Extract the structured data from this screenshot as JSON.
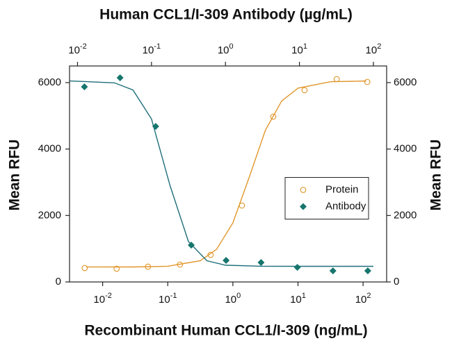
{
  "chart_data": {
    "type": "scatter",
    "title": "Human CCL1/I-309 Antibody (µg/mL)",
    "x_label": "Recombinant Human CCL1/I-309 (ng/mL)",
    "y_label": "Mean RFU",
    "y2_label": "Mean RFU",
    "xscale": "log",
    "xlim": [
      0.0031,
      230
    ],
    "xticks": [
      {
        "value": 0.01,
        "label": "10",
        "sup": "-2"
      },
      {
        "value": 0.1,
        "label": "10",
        "sup": "-1"
      },
      {
        "value": 1,
        "label": "10",
        "sup": "0"
      },
      {
        "value": 10,
        "label": "10",
        "sup": "1"
      },
      {
        "value": 100,
        "label": "10",
        "sup": "2"
      }
    ],
    "x2lim": [
      0.0078,
      151
    ],
    "x2ticks": [
      {
        "value": 0.01,
        "label": "10",
        "sup": "-2"
      },
      {
        "value": 0.1,
        "label": "10",
        "sup": "-1"
      },
      {
        "value": 1,
        "label": "10",
        "sup": "0"
      },
      {
        "value": 10,
        "label": "10",
        "sup": "1"
      },
      {
        "value": 100,
        "label": "10",
        "sup": "2"
      }
    ],
    "ylim": [
      0,
      6500
    ],
    "yticks": [
      0,
      2000,
      4000,
      6000
    ],
    "y2lim": [
      0,
      6500
    ],
    "y2ticks": [
      0,
      2000,
      4000,
      6000
    ],
    "legend_position": "center-right",
    "series": [
      {
        "name": "Protein",
        "color": "#e0962a",
        "marker": "circle",
        "xaxis": "x",
        "x": [
          0.0053,
          0.0164,
          0.0496,
          0.154,
          0.455,
          1.38,
          4.17,
          12.6,
          39.3,
          116
        ],
        "values": [
          418,
          397,
          460,
          523,
          815,
          2300,
          4975,
          5770,
          6104,
          6020
        ],
        "fit_x": [
          0.0056,
          0.0316,
          0.1,
          0.316,
          0.562,
          1,
          1.778,
          3.162,
          5.623,
          10,
          31.62,
          112
        ],
        "fit_values": [
          450,
          452,
          472,
          638,
          981,
          1777,
          3146,
          4568,
          5446,
          5832,
          6025,
          6048
        ]
      },
      {
        "name": "Antibody",
        "color": "#16756d",
        "line_color": "#1d6f7a",
        "marker": "diamond",
        "xaxis": "x2",
        "x": [
          0.0124,
          0.0376,
          0.114,
          0.345,
          1.02,
          3.03,
          9.38,
          28.4,
          84
        ],
        "values": [
          5874,
          6146,
          4682,
          1108,
          648,
          585,
          439,
          334,
          334
        ],
        "fit_x": [
          0.0079,
          0.0316,
          0.0562,
          0.1,
          0.178,
          0.316,
          0.562,
          1,
          3.162,
          10,
          100
        ],
        "fit_values": [
          6050,
          5993,
          5777,
          4906,
          2902,
          1215,
          637,
          504,
          471,
          470,
          470
        ]
      }
    ]
  }
}
